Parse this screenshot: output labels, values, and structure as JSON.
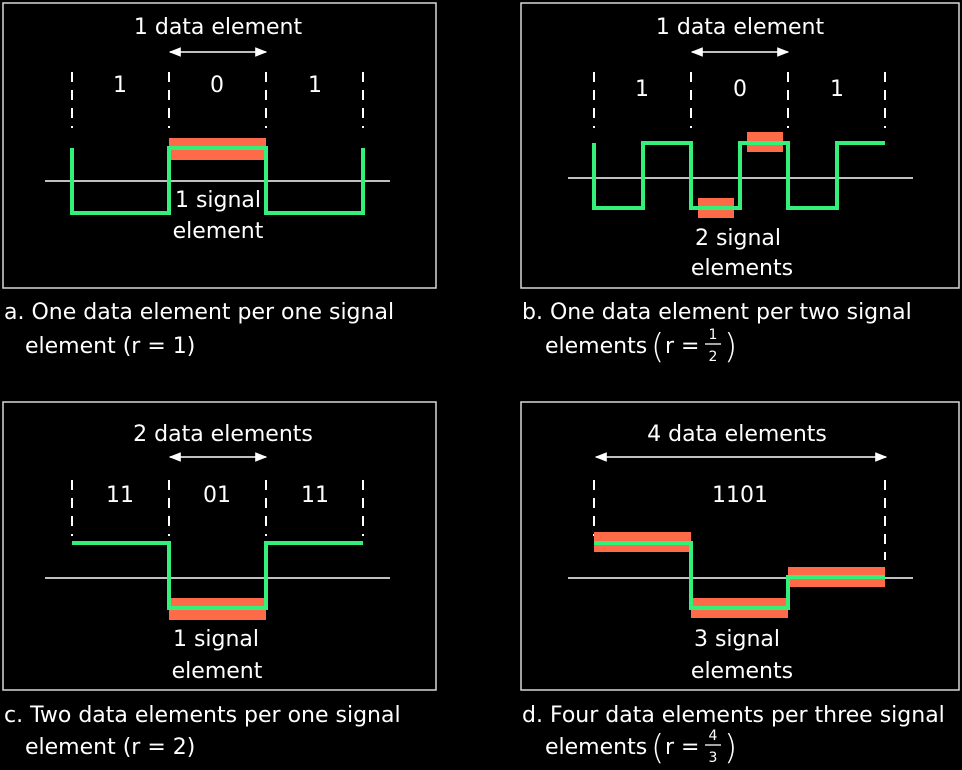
{
  "panels": {
    "a": {
      "data_label": "1 data element",
      "bits": [
        "1",
        "0",
        "1"
      ],
      "signal_label_1": "1 signal",
      "signal_label_2": "element",
      "caption_1": "a. One data element per one signal",
      "caption_2": "element (r = 1)"
    },
    "b": {
      "data_label": "1 data element",
      "bits": [
        "1",
        "0",
        "1"
      ],
      "signal_label_1": "2 signal",
      "signal_label_2": "elements",
      "caption_1": "b. One data element per two signal",
      "caption_2": "elements",
      "r_prefix": "r =",
      "r_num": "1",
      "r_den": "2"
    },
    "c": {
      "data_label": "2 data elements",
      "bits": [
        "11",
        "01",
        "11"
      ],
      "signal_label_1": "1 signal",
      "signal_label_2": "element",
      "caption_1": "c. Two data elements per one signal",
      "caption_2": "element (r = 2)"
    },
    "d": {
      "data_label": "4 data elements",
      "bits": [
        "1101"
      ],
      "signal_label_1": "3 signal",
      "signal_label_2": "elements",
      "caption_1": "d. Four data elements per three signal",
      "caption_2": "elements",
      "r_prefix": "r =",
      "r_num": "4",
      "r_den": "3"
    }
  },
  "colors": {
    "background": "#000000",
    "signal": "#33f07a",
    "signal_element_highlight": "#ff6a48",
    "lines": "#ffffff"
  }
}
